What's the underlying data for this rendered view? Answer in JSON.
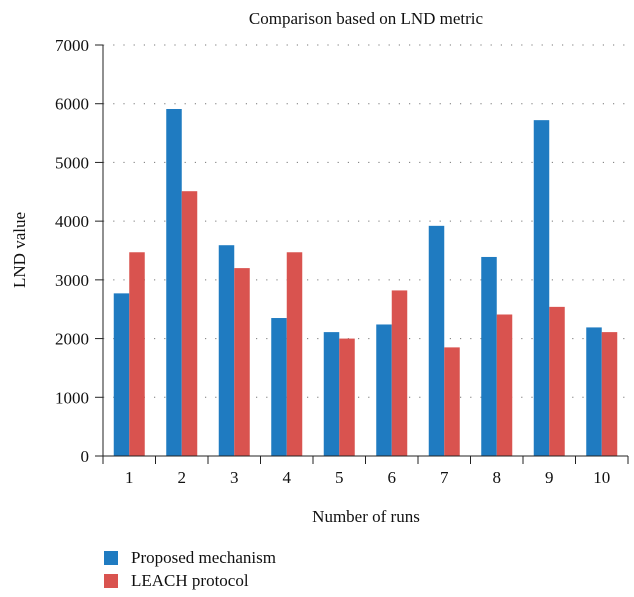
{
  "chart_data": {
    "type": "bar",
    "title": "Comparison based on LND metric",
    "xlabel": "Number of runs",
    "ylabel": "LND value",
    "categories": [
      "1",
      "2",
      "3",
      "4",
      "5",
      "6",
      "7",
      "8",
      "9",
      "10"
    ],
    "series": [
      {
        "name": "Proposed mechanism",
        "color": "#1f7bc1",
        "values": [
          2770,
          5910,
          3590,
          2350,
          2110,
          2240,
          3920,
          3390,
          5720,
          2190
        ]
      },
      {
        "name": "LEACH protocol",
        "color": "#d9534f",
        "values": [
          3470,
          4510,
          3200,
          3470,
          2000,
          2820,
          1850,
          2410,
          2540,
          2110
        ]
      }
    ],
    "ylim": [
      0,
      7000
    ],
    "yticks": [
      0,
      1000,
      2000,
      3000,
      4000,
      5000,
      6000,
      7000
    ],
    "grid": "horizontal dotted",
    "legend_position": "bottom-left"
  }
}
